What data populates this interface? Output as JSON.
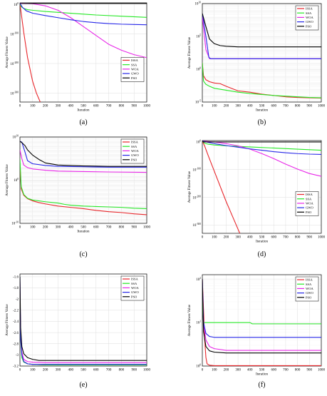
{
  "colors": {
    "ISSA": "#e8262b",
    "SSA": "#26e826",
    "WOA": "#e826e8",
    "GWO": "#2626e8",
    "PSO": "#000000",
    "grid": "#dedede",
    "axis": "#000000"
  },
  "chart_data": [
    {
      "label": "(a)",
      "type": "line",
      "xlabel": "Iteration",
      "ylabel": "Average Fitness Value",
      "yscale": "log",
      "xlim": [
        0,
        1000
      ],
      "xticks": [
        0,
        100,
        200,
        300,
        400,
        500,
        600,
        700,
        800,
        900,
        1000
      ],
      "ylim": [
        -330,
        5
      ],
      "yticks": [
        {
          "pos": 0,
          "label": "10^0"
        },
        {
          "pos": -100,
          "label": "10^-100"
        },
        {
          "pos": -200,
          "label": "10^-200"
        },
        {
          "pos": -300,
          "label": "10^-300"
        }
      ],
      "legend": {
        "placement": "center-right",
        "entries": [
          "ISSA",
          "SSA",
          "WOA",
          "GWO",
          "PSO"
        ]
      },
      "series": [
        {
          "name": "ISSA",
          "x": [
            0,
            10,
            30,
            60,
            100,
            130,
            160
          ],
          "y": [
            3,
            -30,
            -95,
            -180,
            -260,
            -300,
            -330
          ]
        },
        {
          "name": "SSA",
          "x": [
            0,
            10,
            30,
            60,
            100,
            200,
            400,
            600,
            800,
            1000
          ],
          "y": [
            3,
            -8,
            -14,
            -18,
            -20,
            -24,
            -30,
            -36,
            -40,
            -44
          ]
        },
        {
          "name": "WOA",
          "x": [
            0,
            50,
            100,
            200,
            300,
            400,
            500,
            600,
            700,
            800,
            900,
            1000
          ],
          "y": [
            4,
            3,
            2,
            -5,
            -20,
            -45,
            -75,
            -105,
            -135,
            -155,
            -170,
            -180
          ]
        },
        {
          "name": "GWO",
          "x": [
            0,
            20,
            50,
            100,
            200,
            300,
            400,
            500,
            600,
            700,
            800,
            900,
            1000
          ],
          "y": [
            3,
            -10,
            -22,
            -30,
            -38,
            -45,
            -52,
            -58,
            -62,
            -65,
            -67,
            -68,
            -69
          ]
        },
        {
          "name": "PSO",
          "x": [
            0,
            1000
          ],
          "y": [
            3,
            3
          ]
        }
      ]
    },
    {
      "label": "(b)",
      "type": "line",
      "xlabel": "Iteration",
      "ylabel": "Average Fitness Value",
      "yscale": "log",
      "xlim": [
        0,
        1000
      ],
      "xticks": [
        0,
        100,
        200,
        300,
        400,
        500,
        600,
        700,
        800,
        900,
        1000
      ],
      "ylim": [
        -5,
        10
      ],
      "yticks": [
        {
          "pos": 10,
          "label": "10^10"
        },
        {
          "pos": 5,
          "label": "10^5"
        },
        {
          "pos": 0,
          "label": "10^0"
        },
        {
          "pos": -5,
          "label": "10^-5"
        }
      ],
      "legend": {
        "placement": "top-right",
        "entries": [
          "ISSA",
          "SSA",
          "WOA",
          "GWO",
          "PSO"
        ]
      },
      "series": [
        {
          "name": "ISSA",
          "x": [
            0,
            10,
            30,
            60,
            100,
            150,
            200,
            300,
            400,
            500,
            600,
            700,
            800,
            900,
            1000
          ],
          "y": [
            1,
            -1,
            -1.6,
            -1.9,
            -2.1,
            -2.2,
            -2.6,
            -3.3,
            -3.5,
            -3.8,
            -4,
            -4.2,
            -4.3,
            -4.35,
            -4.4
          ]
        },
        {
          "name": "SSA",
          "x": [
            0,
            10,
            30,
            60,
            100,
            200,
            300,
            400,
            500,
            600,
            700,
            800,
            900,
            1000
          ],
          "y": [
            1,
            -1.8,
            -2.3,
            -2.6,
            -2.9,
            -3.2,
            -3.5,
            -3.7,
            -3.85,
            -4,
            -4.1,
            -4.2,
            -4.3,
            -4.35
          ]
        },
        {
          "name": "WOA",
          "x": [
            0,
            30,
            60,
            1000
          ],
          "y": [
            8,
            3,
            1.6,
            1.6
          ]
        },
        {
          "name": "GWO",
          "x": [
            0,
            30,
            55,
            70,
            1000
          ],
          "y": [
            8.5,
            5,
            1.8,
            1.6,
            1.6
          ]
        },
        {
          "name": "PSO",
          "x": [
            0,
            30,
            60,
            100,
            150,
            200,
            300,
            1000
          ],
          "y": [
            8.5,
            6.5,
            4.6,
            3.9,
            3.6,
            3.5,
            3.4,
            3.4
          ]
        }
      ]
    },
    {
      "label": "(c)",
      "type": "line",
      "xlabel": "Iteration",
      "ylabel": "Average Fitness Value",
      "yscale": "log",
      "xlim": [
        0,
        1000
      ],
      "xticks": [
        0,
        100,
        200,
        300,
        400,
        500,
        600,
        700,
        800,
        900,
        1000
      ],
      "ylim": [
        -10,
        10
      ],
      "yticks": [
        {
          "pos": 10,
          "label": "10^10"
        },
        {
          "pos": 0,
          "label": "10^0"
        },
        {
          "pos": -10,
          "label": "10^-10"
        }
      ],
      "legend": {
        "placement": "top-right",
        "entries": [
          "ISSA",
          "SSA",
          "WOA",
          "GWO",
          "PSO"
        ]
      },
      "series": [
        {
          "name": "ISSA",
          "x": [
            0,
            10,
            30,
            60,
            100,
            150,
            200,
            300,
            400,
            500,
            600,
            700,
            800,
            900,
            1000
          ],
          "y": [
            3,
            -2,
            -3.5,
            -4.3,
            -4.8,
            -5.2,
            -5.5,
            -6,
            -6.3,
            -6.6,
            -7,
            -7.3,
            -7.5,
            -7.8,
            -8
          ]
        },
        {
          "name": "SSA",
          "x": [
            0,
            10,
            30,
            60,
            100,
            200,
            300,
            350,
            400,
            500,
            600,
            700,
            800,
            900,
            1000
          ],
          "y": [
            5,
            -1.5,
            -3.3,
            -4.2,
            -4.6,
            -5,
            -5.3,
            -5.6,
            -5.8,
            -6,
            -6.1,
            -6.2,
            -6.3,
            -6.5,
            -6.6
          ]
        },
        {
          "name": "WOA",
          "x": [
            0,
            15,
            30,
            60,
            100,
            200,
            300,
            500,
            700,
            1000
          ],
          "y": [
            7,
            5,
            3.5,
            2.9,
            2.6,
            2.3,
            2.1,
            2,
            1.9,
            1.8
          ]
        },
        {
          "name": "GWO",
          "x": [
            0,
            15,
            40,
            60,
            100,
            200,
            300,
            500,
            700,
            1000
          ],
          "y": [
            9,
            8.8,
            6.5,
            4.5,
            3.8,
            3.4,
            3.2,
            3.1,
            3,
            3
          ]
        },
        {
          "name": "PSO",
          "x": [
            0,
            15,
            40,
            60,
            100,
            150,
            200,
            300,
            500,
            700,
            1000
          ],
          "y": [
            9,
            8.7,
            8,
            7,
            5.8,
            4.8,
            4,
            3.5,
            3.3,
            3.2,
            3.2
          ]
        }
      ]
    },
    {
      "label": "(d)",
      "type": "line",
      "xlabel": "Iteration",
      "ylabel": "Average Fitness Value",
      "yscale": "log",
      "xlim": [
        0,
        1000
      ],
      "xticks": [
        0,
        100,
        200,
        300,
        400,
        500,
        600,
        700,
        800,
        900,
        1000
      ],
      "ylim": [
        -330,
        5
      ],
      "yticks": [
        {
          "pos": 0,
          "label": "10^0"
        },
        {
          "pos": -100,
          "label": "10^-100"
        },
        {
          "pos": -200,
          "label": "10^-200"
        },
        {
          "pos": -300,
          "label": "10^-300"
        }
      ],
      "legend": {
        "placement": "center-right",
        "entries": [
          "ISSA",
          "SSA",
          "WOA",
          "GWO",
          "PSO"
        ]
      },
      "series": [
        {
          "name": "ISSA",
          "x": [
            0,
            20,
            50,
            100,
            150,
            200,
            250,
            300,
            315
          ],
          "y": [
            3,
            -15,
            -50,
            -105,
            -160,
            -215,
            -265,
            -315,
            -330
          ]
        },
        {
          "name": "SSA",
          "x": [
            0,
            20,
            50,
            100,
            200,
            400,
            600,
            800,
            1000
          ],
          "y": [
            3,
            -5,
            -8,
            -11,
            -14,
            -18,
            -22,
            -26,
            -30
          ]
        },
        {
          "name": "WOA",
          "x": [
            0,
            100,
            200,
            300,
            400,
            500,
            600,
            700,
            800,
            900,
            1000
          ],
          "y": [
            3,
            0,
            -6,
            -14,
            -26,
            -42,
            -60,
            -80,
            -98,
            -114,
            -124
          ]
        },
        {
          "name": "GWO",
          "x": [
            0,
            100,
            200,
            300,
            400,
            500,
            600,
            700,
            800,
            900,
            1000
          ],
          "y": [
            3,
            -6,
            -13,
            -19,
            -25,
            -30,
            -35,
            -39,
            -42,
            -44,
            -45
          ]
        },
        {
          "name": "PSO",
          "x": [
            0,
            10,
            1000
          ],
          "y": [
            3,
            0,
            0
          ]
        }
      ]
    },
    {
      "label": "(e)",
      "type": "line",
      "xlabel": "",
      "ylabel": "Average Fitness Value",
      "yscale": "linear",
      "xlim": [
        0,
        1000
      ],
      "xticks": [
        0,
        100,
        200,
        300,
        400,
        500,
        600,
        700,
        800,
        900,
        1000
      ],
      "ylim": [
        -3.2,
        -1.55
      ],
      "yticks": [
        {
          "pos": -1.6,
          "label": "-1.6"
        },
        {
          "pos": -1.8,
          "label": "-1.8"
        },
        {
          "pos": -2,
          "label": "-2"
        },
        {
          "pos": -2.2,
          "label": "-2.2"
        },
        {
          "pos": -2.4,
          "label": "-2.4"
        },
        {
          "pos": -2.6,
          "label": "-2.6"
        },
        {
          "pos": -2.8,
          "label": "-2.8"
        },
        {
          "pos": -3,
          "label": "-3"
        },
        {
          "pos": -3.2,
          "label": "-3.2"
        }
      ],
      "legend": {
        "placement": "top-right",
        "entries": [
          "ISSA",
          "SSA",
          "WOA",
          "GWO",
          "PSO"
        ]
      },
      "series": [
        {
          "name": "ISSA",
          "x": [
            0,
            5,
            15,
            30,
            60,
            100,
            200,
            1000
          ],
          "y": [
            -1.9,
            -2.6,
            -3.0,
            -3.12,
            -3.16,
            -3.17,
            -3.18,
            -3.18
          ]
        },
        {
          "name": "SSA",
          "x": [
            0,
            5,
            15,
            30,
            60,
            100,
            200,
            1000
          ],
          "y": [
            -2.0,
            -2.7,
            -3.05,
            -3.13,
            -3.16,
            -3.17,
            -3.18,
            -3.18
          ]
        },
        {
          "name": "WOA",
          "x": [
            0,
            5,
            15,
            30,
            60,
            100,
            200,
            1000
          ],
          "y": [
            -1.7,
            -2.6,
            -2.95,
            -3.08,
            -3.12,
            -3.13,
            -3.14,
            -3.14
          ]
        },
        {
          "name": "GWO",
          "x": [
            0,
            5,
            15,
            30,
            60,
            100,
            200,
            1000
          ],
          "y": [
            -1.6,
            -2.7,
            -3.0,
            -3.12,
            -3.16,
            -3.17,
            -3.17,
            -3.17
          ]
        },
        {
          "name": "PSO",
          "x": [
            0,
            5,
            15,
            30,
            60,
            100,
            150,
            200,
            1000
          ],
          "y": [
            -1.6,
            -2.5,
            -2.85,
            -2.98,
            -3.05,
            -3.08,
            -3.1,
            -3.1,
            -3.1
          ]
        }
      ]
    },
    {
      "label": "(f)",
      "type": "line",
      "xlabel": "Iteration",
      "ylabel": "Average Fitness Value",
      "yscale": "log",
      "xlim": [
        0,
        1000
      ],
      "xticks": [
        0,
        100,
        200,
        300,
        400,
        500,
        600,
        700,
        800,
        900,
        1000
      ],
      "ylim": [
        0,
        2.1
      ],
      "yticks": [
        {
          "pos": 2,
          "label": "10^2"
        },
        {
          "pos": 1,
          "label": "10^1"
        },
        {
          "pos": 0,
          "label": "10^0"
        }
      ],
      "legend": {
        "placement": "top-right",
        "entries": [
          "ISSA",
          "SSA",
          "WOA",
          "GWO",
          "PSO"
        ]
      },
      "series": [
        {
          "name": "ISSA",
          "x": [
            0,
            10,
            20,
            30,
            40,
            60,
            100,
            1000
          ],
          "y": [
            2.0,
            1.3,
            0.6,
            0.2,
            0.05,
            0.02,
            0.01,
            0.01
          ]
        },
        {
          "name": "SSA",
          "x": [
            0,
            5,
            10,
            400,
            420,
            1000
          ],
          "y": [
            2.0,
            1.2,
            1.0,
            1.0,
            0.97,
            0.97
          ]
        },
        {
          "name": "WOA",
          "x": [
            0,
            10,
            30,
            60,
            100,
            200,
            1000
          ],
          "y": [
            2.0,
            1.0,
            0.6,
            0.45,
            0.4,
            0.36,
            0.36
          ]
        },
        {
          "name": "GWO",
          "x": [
            0,
            10,
            30,
            60,
            100,
            300,
            1000
          ],
          "y": [
            2.0,
            1.0,
            0.75,
            0.68,
            0.66,
            0.66,
            0.66
          ]
        },
        {
          "name": "PSO",
          "x": [
            0,
            10,
            30,
            60,
            100,
            200,
            1000
          ],
          "y": [
            2.0,
            0.8,
            0.45,
            0.35,
            0.32,
            0.3,
            0.3
          ]
        }
      ]
    }
  ]
}
